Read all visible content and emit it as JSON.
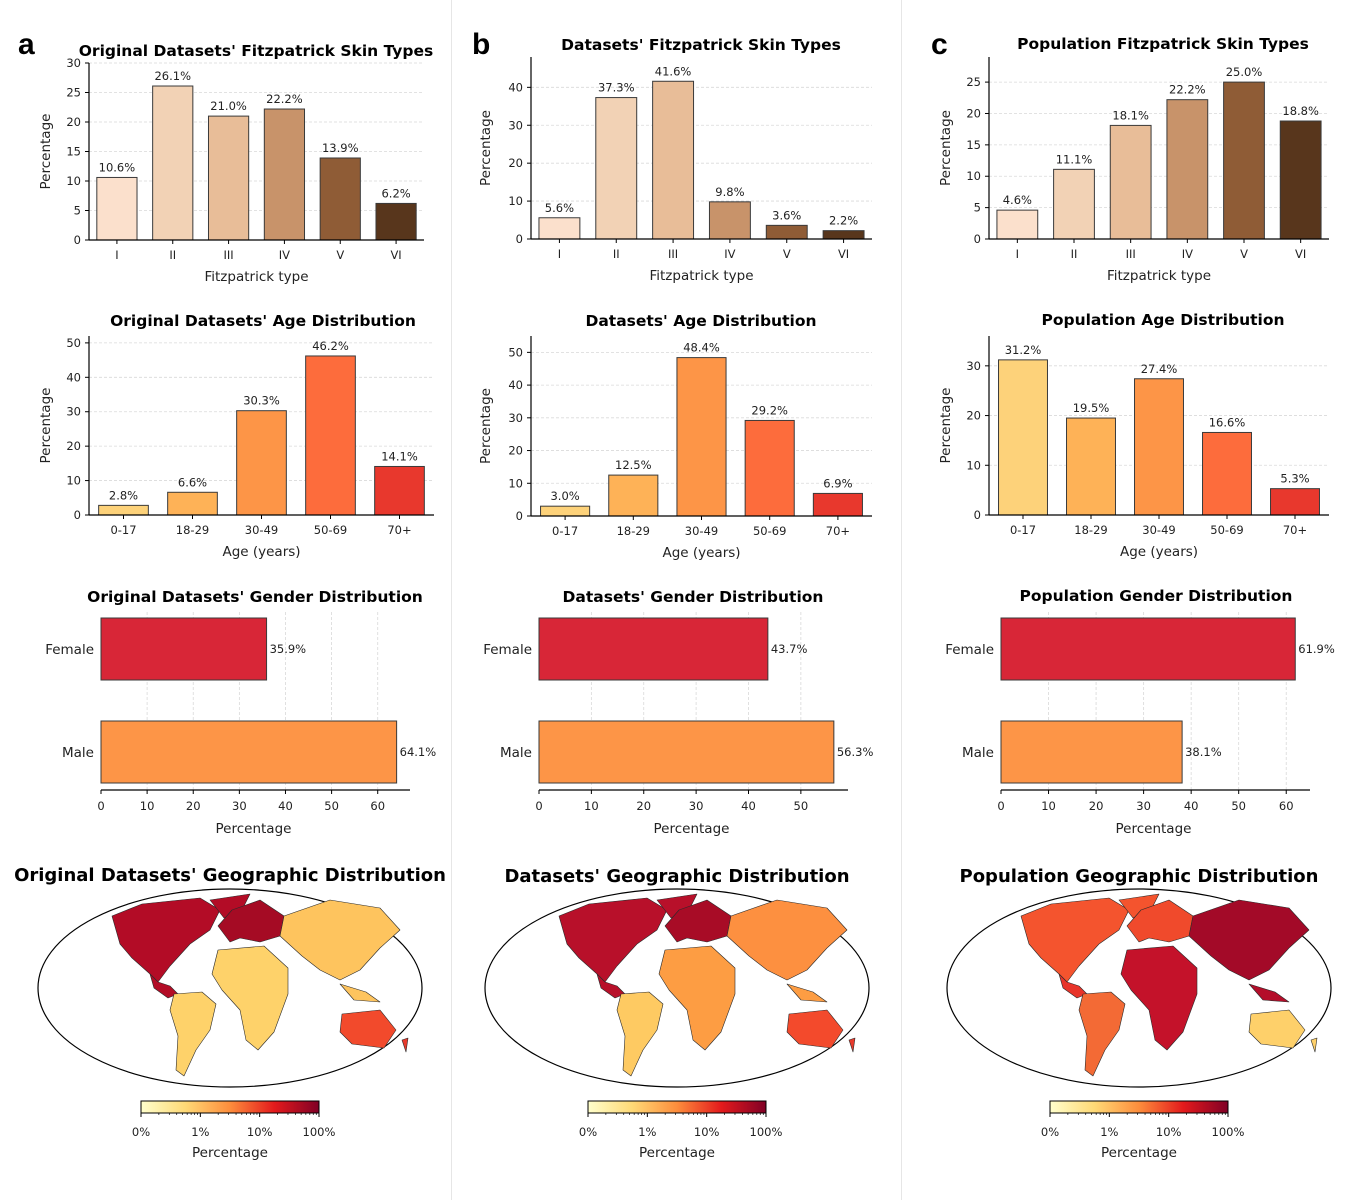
{
  "colors": {
    "fitz": [
      "#fbe0cc",
      "#f2d2b5",
      "#e8bd98",
      "#c8936a",
      "#8f5c36",
      "#58361c"
    ],
    "age": [
      "#fdd27a",
      "#feb257",
      "#fd9547",
      "#fd6c3c",
      "#e8382d"
    ],
    "gender": [
      "#d82637",
      "#fd9547"
    ],
    "colorbar": [
      "#ffffcc",
      "#fed976",
      "#fd8d3c",
      "#e31a1c",
      "#800026"
    ],
    "edge": "#3a3a3a"
  },
  "panels": [
    {
      "letter": "a",
      "fitz_title": "Original Datasets' Fitzpatrick Skin Types",
      "age_title": "Original Datasets' Age Distribution",
      "gender_title": "Original Datasets' Gender Distribution",
      "geo_title": "Original Datasets' Geographic Distribution",
      "map_style": "europe_na_dark"
    },
    {
      "letter": "b",
      "fitz_title": "Datasets' Fitzpatrick Skin Types",
      "age_title": "Datasets' Age Distribution",
      "gender_title": "Datasets' Gender Distribution",
      "geo_title": "Datasets' Geographic Distribution",
      "map_style": "europe_na_dark_orange"
    },
    {
      "letter": "c",
      "fitz_title": "Population Fitzpatrick Skin Types",
      "age_title": "Population Age Distribution",
      "gender_title": "Population Gender Distribution",
      "geo_title": "Population Geographic Distribution",
      "map_style": "asia_africa_dark"
    }
  ],
  "axis_labels": {
    "fitz_x": "Fitzpatrick type",
    "age_x": "Age (years)",
    "y": "Percentage",
    "gender_x": "Percentage",
    "colorbar": "Percentage"
  },
  "colorbar_ticks": [
    "0%",
    "1%",
    "10%",
    "100%"
  ],
  "chart_data": [
    {
      "type": "bar",
      "panel": "a",
      "title": "Original Datasets' Fitzpatrick Skin Types",
      "xlabel": "Fitzpatrick type",
      "ylabel": "Percentage",
      "categories": [
        "I",
        "II",
        "III",
        "IV",
        "V",
        "VI"
      ],
      "values": [
        10.6,
        26.1,
        21.0,
        22.2,
        13.9,
        6.2
      ],
      "labels": [
        "10.6%",
        "26.1%",
        "21.0%",
        "22.2%",
        "13.9%",
        "6.2%"
      ],
      "ylim": [
        0,
        30
      ],
      "yticks": [
        0,
        5,
        10,
        15,
        20,
        25,
        30
      ]
    },
    {
      "type": "bar",
      "panel": "b",
      "title": "Datasets' Fitzpatrick Skin Types",
      "xlabel": "Fitzpatrick type",
      "ylabel": "Percentage",
      "categories": [
        "I",
        "II",
        "III",
        "IV",
        "V",
        "VI"
      ],
      "values": [
        5.6,
        37.3,
        41.6,
        9.8,
        3.6,
        2.2
      ],
      "labels": [
        "5.6%",
        "37.3%",
        "41.6%",
        "9.8%",
        "3.6%",
        "2.2%"
      ],
      "ylim": [
        0,
        48
      ],
      "yticks": [
        0,
        10,
        20,
        30,
        40
      ]
    },
    {
      "type": "bar",
      "panel": "c",
      "title": "Population Fitzpatrick Skin Types",
      "xlabel": "Fitzpatrick type",
      "ylabel": "Percentage",
      "categories": [
        "I",
        "II",
        "III",
        "IV",
        "V",
        "VI"
      ],
      "values": [
        4.6,
        11.1,
        18.1,
        22.2,
        25.0,
        18.8
      ],
      "labels": [
        "4.6%",
        "11.1%",
        "18.1%",
        "22.2%",
        "25.0%",
        "18.8%"
      ],
      "ylim": [
        0,
        29
      ],
      "yticks": [
        0,
        5,
        10,
        15,
        20,
        25
      ]
    },
    {
      "type": "bar",
      "panel": "a",
      "title": "Original Datasets' Age Distribution",
      "xlabel": "Age (years)",
      "ylabel": "Percentage",
      "categories": [
        "0-17",
        "18-29",
        "30-49",
        "50-69",
        "70+"
      ],
      "values": [
        2.8,
        6.6,
        30.3,
        46.2,
        14.1
      ],
      "labels": [
        "2.8%",
        "6.6%",
        "30.3%",
        "46.2%",
        "14.1%"
      ],
      "ylim": [
        0,
        52
      ],
      "yticks": [
        0,
        10,
        20,
        30,
        40,
        50
      ]
    },
    {
      "type": "bar",
      "panel": "b",
      "title": "Datasets' Age Distribution",
      "xlabel": "Age (years)",
      "ylabel": "Percentage",
      "categories": [
        "0-17",
        "18-29",
        "30-49",
        "50-69",
        "70+"
      ],
      "values": [
        3.0,
        12.5,
        48.4,
        29.2,
        6.9
      ],
      "labels": [
        "3.0%",
        "12.5%",
        "48.4%",
        "29.2%",
        "6.9%"
      ],
      "ylim": [
        0,
        55
      ],
      "yticks": [
        0,
        10,
        20,
        30,
        40,
        50
      ]
    },
    {
      "type": "bar",
      "panel": "c",
      "title": "Population Age Distribution",
      "xlabel": "Age (years)",
      "ylabel": "Percentage",
      "categories": [
        "0-17",
        "18-29",
        "30-49",
        "50-69",
        "70+"
      ],
      "values": [
        31.2,
        19.5,
        27.4,
        16.6,
        5.3
      ],
      "labels": [
        "31.2%",
        "19.5%",
        "27.4%",
        "16.6%",
        "5.3%"
      ],
      "ylim": [
        0,
        36
      ],
      "yticks": [
        0,
        10,
        20,
        30
      ]
    },
    {
      "type": "bar",
      "orientation": "horizontal",
      "panel": "a",
      "title": "Original Datasets' Gender Distribution",
      "xlabel": "Percentage",
      "categories": [
        "Female",
        "Male"
      ],
      "values": [
        35.9,
        64.1
      ],
      "labels": [
        "35.9%",
        "64.1%"
      ],
      "xlim": [
        0,
        67
      ],
      "xticks": [
        0,
        10,
        20,
        30,
        40,
        50,
        60
      ]
    },
    {
      "type": "bar",
      "orientation": "horizontal",
      "panel": "b",
      "title": "Datasets' Gender Distribution",
      "xlabel": "Percentage",
      "categories": [
        "Female",
        "Male"
      ],
      "values": [
        43.7,
        56.3
      ],
      "labels": [
        "43.7%",
        "56.3%"
      ],
      "xlim": [
        0,
        59
      ],
      "xticks": [
        0,
        10,
        20,
        30,
        40,
        50
      ]
    },
    {
      "type": "bar",
      "orientation": "horizontal",
      "panel": "c",
      "title": "Population Gender Distribution",
      "xlabel": "Percentage",
      "categories": [
        "Female",
        "Male"
      ],
      "values": [
        61.9,
        38.1
      ],
      "labels": [
        "61.9%",
        "38.1%"
      ],
      "xlim": [
        0,
        65
      ],
      "xticks": [
        0,
        10,
        20,
        30,
        40,
        50,
        60
      ]
    }
  ]
}
